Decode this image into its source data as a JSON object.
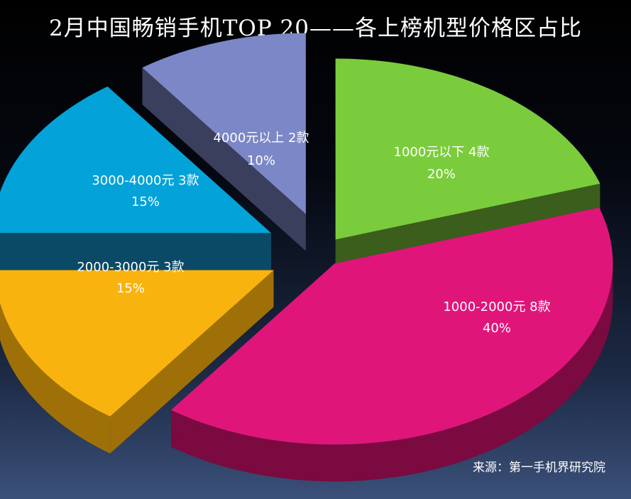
{
  "title": "2月中国畅销手机TOP 20——各上榜机型价格区占比",
  "source": "来源：第一手机界研究院",
  "chart_data": {
    "type": "pie",
    "title": "2月中国畅销手机TOP 20——各上榜机型价格区占比",
    "slices": [
      {
        "label": "1000元以下 4款",
        "percent_label": "20%",
        "value": 20,
        "color": "#7acc3c",
        "side_color": "#3b5e1c"
      },
      {
        "label": "1000-2000元 8款",
        "percent_label": "40%",
        "value": 40,
        "color": "#e0157a",
        "side_color": "#7a0a40"
      },
      {
        "label": "2000-3000元 3款",
        "percent_label": "15%",
        "value": 15,
        "color": "#f9b30f",
        "side_color": "#a07008"
      },
      {
        "label": "3000-4000元 3款",
        "percent_label": "15%",
        "value": 15,
        "color": "#03a2d9",
        "side_color": "#0a4a66"
      },
      {
        "label": "4000元以上  2款",
        "percent_label": "10%",
        "value": 10,
        "color": "#7b87c6",
        "side_color": "#3a3f5e"
      }
    ]
  }
}
